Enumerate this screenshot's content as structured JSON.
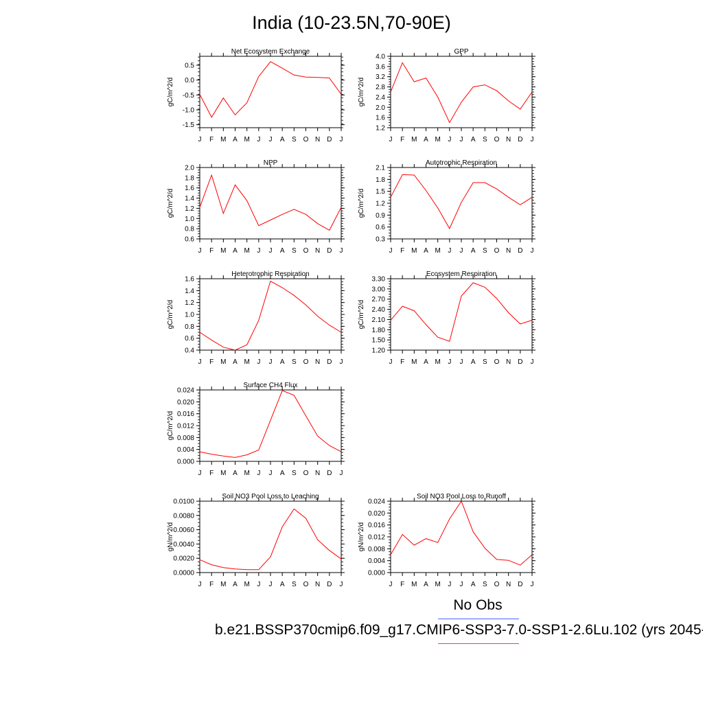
{
  "title": "India (10-23.5N,70-90E)",
  "months": [
    "J",
    "F",
    "M",
    "A",
    "M",
    "J",
    "J",
    "A",
    "S",
    "O",
    "N",
    "D",
    "J"
  ],
  "legend": {
    "obs_label": "No Obs",
    "obs_color": "#4a63ff",
    "case_label": "b.e21.BSSP370cmip6.f09_g17.CMIP6-SSP3-7.0-SSP1-2.6Lu.102 (yrs 2045-",
    "case_color": "#ff0000"
  },
  "chart_data": [
    {
      "type": "line",
      "title": "Net Ecosystem Exchange",
      "ylabel": "gC/m^2/d",
      "ylim": [
        -1.6,
        0.8
      ],
      "yticks": [
        "0.5",
        "0.0",
        "-0.5",
        "-1.0",
        "-1.5"
      ],
      "ytick_values": [
        0.5,
        0.0,
        -0.5,
        -1.0,
        -1.5
      ],
      "values": [
        -0.48,
        -1.25,
        -0.6,
        -1.17,
        -0.76,
        0.12,
        0.62,
        0.4,
        0.17,
        0.1,
        0.09,
        0.07,
        -0.48
      ]
    },
    {
      "type": "line",
      "title": "GPP",
      "ylabel": "gC/m^2/d",
      "ylim": [
        1.2,
        4.0
      ],
      "yticks": [
        "4.0",
        "3.6",
        "3.2",
        "2.8",
        "2.4",
        "2.0",
        "1.6",
        "1.2"
      ],
      "ytick_values": [
        4.0,
        3.6,
        3.2,
        2.8,
        2.4,
        2.0,
        1.6,
        1.2
      ],
      "values": [
        2.6,
        3.75,
        3.0,
        3.15,
        2.4,
        1.4,
        2.2,
        2.8,
        2.88,
        2.65,
        2.25,
        1.93,
        2.6
      ]
    },
    {
      "type": "line",
      "title": "NPP",
      "ylabel": "gC/m^2/d",
      "ylim": [
        0.6,
        2.0
      ],
      "yticks": [
        "2.0",
        "1.8",
        "1.6",
        "1.4",
        "1.2",
        "1.0",
        "0.8",
        "0.6"
      ],
      "ytick_values": [
        2.0,
        1.8,
        1.6,
        1.4,
        1.2,
        1.0,
        0.8,
        0.6
      ],
      "values": [
        1.22,
        1.85,
        1.1,
        1.66,
        1.35,
        0.86,
        0.97,
        1.08,
        1.18,
        1.08,
        0.9,
        0.77,
        1.22
      ]
    },
    {
      "type": "line",
      "title": "Autotrophic Respiration",
      "ylabel": "gC/m^2/d",
      "ylim": [
        0.3,
        2.1
      ],
      "yticks": [
        "2.1",
        "1.8",
        "1.5",
        "1.2",
        "0.9",
        "0.6",
        "0.3"
      ],
      "ytick_values": [
        2.1,
        1.8,
        1.5,
        1.2,
        0.9,
        0.6,
        0.3
      ],
      "values": [
        1.35,
        1.92,
        1.91,
        1.52,
        1.08,
        0.56,
        1.22,
        1.72,
        1.72,
        1.56,
        1.35,
        1.16,
        1.35
      ]
    },
    {
      "type": "line",
      "title": "Heterotrophic Respiration",
      "ylabel": "gC/m^2/d",
      "ylim": [
        0.4,
        1.6
      ],
      "yticks": [
        "1.6",
        "1.4",
        "1.2",
        "1.0",
        "0.8",
        "0.6",
        "0.4"
      ],
      "ytick_values": [
        1.6,
        1.4,
        1.2,
        1.0,
        0.8,
        0.6,
        0.4
      ],
      "values": [
        0.7,
        0.57,
        0.45,
        0.4,
        0.49,
        0.9,
        1.56,
        1.45,
        1.32,
        1.16,
        0.97,
        0.82,
        0.7
      ]
    },
    {
      "type": "line",
      "title": "Ecosystem Respiration",
      "ylabel": "gC/m^2/d",
      "ylim": [
        1.2,
        3.3
      ],
      "yticks": [
        "3.30",
        "3.00",
        "2.70",
        "2.40",
        "2.10",
        "1.80",
        "1.50",
        "1.20"
      ],
      "ytick_values": [
        3.3,
        3.0,
        2.7,
        2.4,
        2.1,
        1.8,
        1.5,
        1.2
      ],
      "values": [
        2.08,
        2.49,
        2.36,
        1.95,
        1.58,
        1.46,
        2.79,
        3.18,
        3.05,
        2.72,
        2.3,
        1.97,
        2.08
      ]
    },
    {
      "type": "line",
      "title": "Surface CH4 Flux",
      "ylabel": "gC/m^2/d",
      "ylim": [
        0.0,
        0.024
      ],
      "yticks": [
        "0.024",
        "0.020",
        "0.016",
        "0.012",
        "0.008",
        "0.004",
        "0.000"
      ],
      "ytick_values": [
        0.024,
        0.02,
        0.016,
        0.012,
        0.008,
        0.004,
        0.0
      ],
      "values": [
        0.0032,
        0.0024,
        0.0018,
        0.0013,
        0.0022,
        0.0038,
        0.0138,
        0.0238,
        0.0222,
        0.0153,
        0.0085,
        0.0053,
        0.0032
      ]
    },
    {
      "type": "line",
      "title": "Soil NO3 Pool Loss to Leaching",
      "ylabel": "gN/m^2/d",
      "ylim": [
        0.0,
        0.01
      ],
      "yticks": [
        "0.0100",
        "0.0080",
        "0.0060",
        "0.0040",
        "0.0020",
        "0.0000"
      ],
      "ytick_values": [
        0.01,
        0.008,
        0.006,
        0.004,
        0.002,
        0.0
      ],
      "values": [
        0.0018,
        0.0011,
        0.0007,
        0.0005,
        0.0004,
        0.0004,
        0.0022,
        0.0064,
        0.0089,
        0.0076,
        0.0046,
        0.0031,
        0.0019
      ]
    },
    {
      "type": "line",
      "title": "Soil NO3 Pool Loss to Runoff",
      "ylabel": "gN/m^2/d",
      "ylim": [
        0.0,
        0.024
      ],
      "yticks": [
        "0.024",
        "0.020",
        "0.016",
        "0.012",
        "0.008",
        "0.004",
        "0.000"
      ],
      "ytick_values": [
        0.024,
        0.02,
        0.016,
        0.012,
        0.008,
        0.004,
        0.0
      ],
      "values": [
        0.006,
        0.0128,
        0.0092,
        0.0114,
        0.0101,
        0.018,
        0.024,
        0.0137,
        0.0082,
        0.0044,
        0.0041,
        0.0025,
        0.006
      ]
    }
  ]
}
